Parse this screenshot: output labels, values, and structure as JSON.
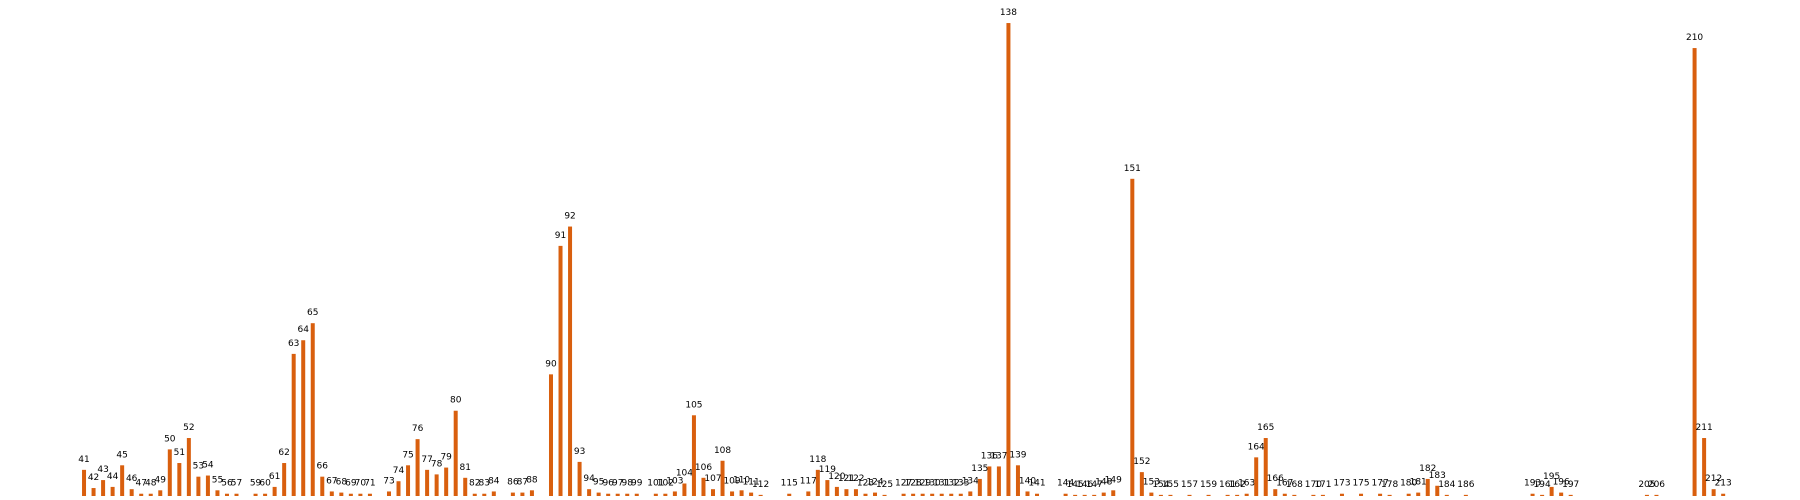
{
  "chart_data": {
    "type": "bar",
    "color": "#d95f0e",
    "x": [
      41,
      42,
      43,
      44,
      45,
      46,
      47,
      48,
      49,
      50,
      51,
      52,
      53,
      54,
      55,
      56,
      57,
      59,
      60,
      61,
      62,
      63,
      64,
      65,
      66,
      67,
      68,
      69,
      70,
      71,
      73,
      74,
      75,
      76,
      77,
      78,
      79,
      80,
      81,
      82,
      83,
      84,
      86,
      87,
      88,
      90,
      91,
      92,
      93,
      94,
      95,
      96,
      97,
      98,
      99,
      101,
      102,
      103,
      104,
      105,
      106,
      107,
      108,
      109,
      110,
      111,
      112,
      115,
      117,
      118,
      119,
      120,
      121,
      122,
      123,
      124,
      125,
      127,
      128,
      129,
      130,
      131,
      132,
      133,
      134,
      135,
      136,
      137,
      138,
      139,
      140,
      141,
      144,
      145,
      146,
      147,
      148,
      149,
      151,
      152,
      153,
      154,
      155,
      157,
      159,
      161,
      162,
      163,
      164,
      165,
      166,
      167,
      168,
      170,
      171,
      173,
      175,
      177,
      178,
      180,
      181,
      182,
      183,
      184,
      186,
      193,
      194,
      195,
      196,
      197,
      205,
      206,
      210,
      211,
      212,
      213
    ],
    "values": [
      23,
      7,
      14,
      8,
      27,
      6,
      2,
      2,
      5,
      41,
      29,
      51,
      17,
      18,
      5,
      2,
      2,
      2,
      2,
      8,
      29,
      125,
      137,
      152,
      17,
      4,
      3,
      2,
      2,
      2,
      4,
      13,
      27,
      50,
      23,
      19,
      25,
      75,
      16,
      2,
      2,
      4,
      3,
      3,
      5,
      107,
      220,
      237,
      30,
      6,
      3,
      2,
      2,
      2,
      2,
      2,
      2,
      4,
      11,
      71,
      16,
      6,
      31,
      4,
      5,
      3,
      1,
      2,
      4,
      23,
      14,
      8,
      6,
      6,
      2,
      3,
      1,
      2,
      2,
      2,
      2,
      2,
      2,
      2,
      4,
      15,
      26,
      26,
      416,
      27,
      4,
      2,
      2,
      1,
      1,
      1,
      3,
      5,
      279,
      21,
      3,
      1,
      1,
      1,
      1,
      1,
      1,
      2,
      34,
      51,
      6,
      2,
      1,
      1,
      1,
      2,
      2,
      2,
      1,
      2,
      3,
      15,
      9,
      1,
      1,
      2,
      1,
      8,
      3,
      1,
      1,
      1,
      394,
      51,
      6,
      2
    ],
    "xlim": [
      40,
      214
    ],
    "ylim": [
      0,
      420
    ]
  }
}
